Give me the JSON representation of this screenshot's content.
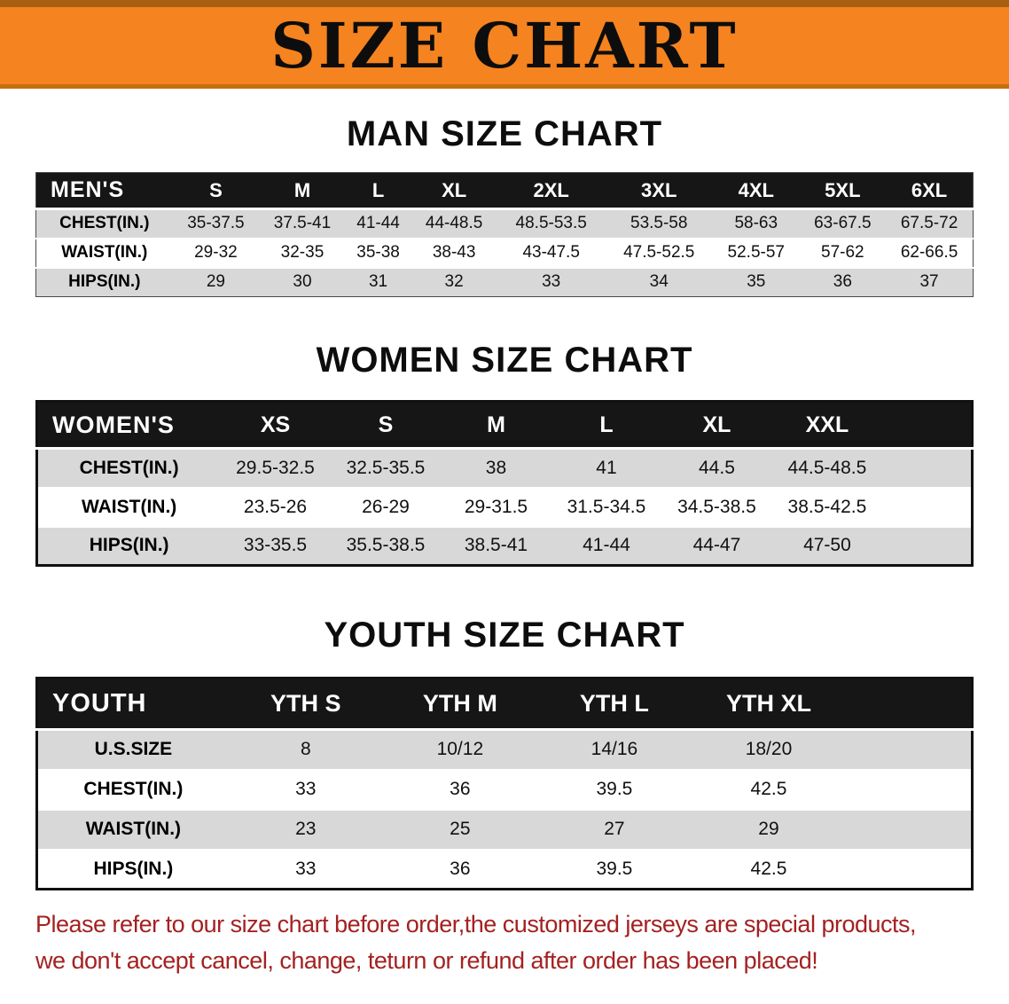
{
  "banner": {
    "title": "SIZE CHART",
    "bg_color": "#f5831f"
  },
  "sections": [
    {
      "heading": "MAN SIZE CHART",
      "table": {
        "header": [
          "MEN'S",
          "S",
          "M",
          "L",
          "XL",
          "2XL",
          "3XL",
          "4XL",
          "5XL",
          "6XL"
        ],
        "rows": [
          [
            "CHEST(IN.)",
            "35-37.5",
            "37.5-41",
            "41-44",
            "44-48.5",
            "48.5-53.5",
            "53.5-58",
            "58-63",
            "63-67.5",
            "67.5-72"
          ],
          [
            "WAIST(IN.)",
            "29-32",
            "32-35",
            "35-38",
            "38-43",
            "43-47.5",
            "47.5-52.5",
            "52.5-57",
            "57-62",
            "62-66.5"
          ],
          [
            "HIPS(IN.)",
            "29",
            "30",
            "31",
            "32",
            "33",
            "34",
            "35",
            "36",
            "37"
          ]
        ]
      }
    },
    {
      "heading": "WOMEN SIZE CHART",
      "table": {
        "header": [
          "WOMEN'S",
          "XS",
          "S",
          "M",
          "L",
          "XL",
          "XXL"
        ],
        "rows": [
          [
            "CHEST(IN.)",
            "29.5-32.5",
            "32.5-35.5",
            "38",
            "41",
            "44.5",
            "44.5-48.5"
          ],
          [
            "WAIST(IN.)",
            "23.5-26",
            "26-29",
            "29-31.5",
            "31.5-34.5",
            "34.5-38.5",
            "38.5-42.5"
          ],
          [
            "HIPS(IN.)",
            "33-35.5",
            "35.5-38.5",
            "38.5-41",
            "41-44",
            "44-47",
            "47-50"
          ]
        ]
      }
    },
    {
      "heading": "YOUTH SIZE CHART",
      "table": {
        "header": [
          "YOUTH",
          "YTH S",
          "YTH M",
          "YTH L",
          "YTH XL"
        ],
        "rows": [
          [
            "U.S.SIZE",
            "8",
            "10/12",
            "14/16",
            "18/20"
          ],
          [
            "CHEST(IN.)",
            "33",
            "36",
            "39.5",
            "42.5"
          ],
          [
            "WAIST(IN.)",
            "23",
            "25",
            "27",
            "29"
          ],
          [
            "HIPS(IN.)",
            "33",
            "36",
            "39.5",
            "42.5"
          ]
        ]
      }
    }
  ],
  "footer": {
    "line1": "Please refer to our size chart before order,the customized jerseys are special products,",
    "line2": "we don't accept cancel, change, teturn or refund after order has been placed!",
    "text_color": "#a42121"
  }
}
